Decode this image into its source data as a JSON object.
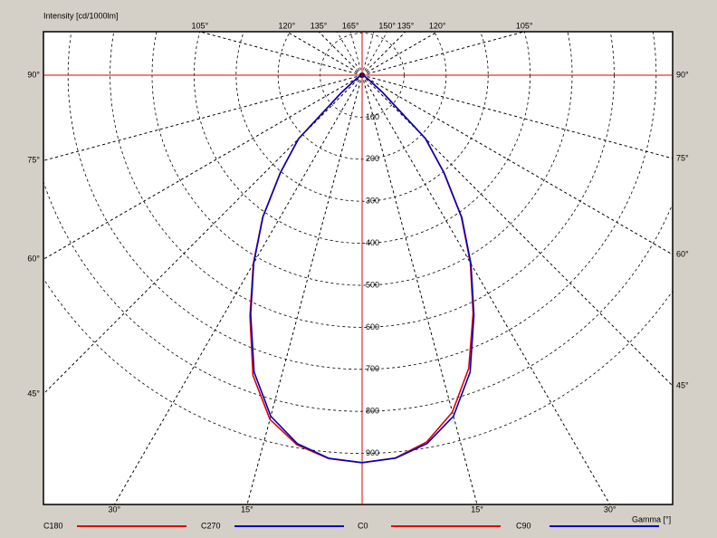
{
  "chart_data": {
    "type": "polar",
    "title": "Intensity [cd/1000lm]",
    "x_label": "Gamma [°]",
    "x": [
      0,
      5,
      10,
      15,
      20,
      25,
      30,
      35,
      40,
      45,
      50,
      55,
      60,
      70,
      80,
      90
    ],
    "series": [
      {
        "name": "C180",
        "color": "#e00000",
        "side": "left",
        "values": [
          922,
          916,
          893,
          848,
          760,
          632,
          518,
          413,
          303,
          215,
          65,
          22,
          10,
          5,
          2,
          0
        ]
      },
      {
        "name": "C270",
        "color": "#0000c0",
        "side": "left",
        "values": [
          922,
          915,
          890,
          840,
          752,
          628,
          516,
          412,
          302,
          214,
          64,
          22,
          10,
          5,
          2,
          0
        ]
      },
      {
        "name": "C0",
        "color": "#e00000",
        "side": "right",
        "values": [
          922,
          914,
          886,
          830,
          742,
          625,
          515,
          412,
          302,
          212,
          62,
          21,
          10,
          5,
          2,
          0
        ]
      },
      {
        "name": "C90",
        "color": "#0000c0",
        "side": "right",
        "values": [
          922,
          915,
          890,
          840,
          752,
          630,
          518,
          414,
          304,
          214,
          64,
          22,
          10,
          5,
          2,
          0
        ]
      }
    ],
    "ylim": [
      0,
      1000
    ],
    "yticks": [
      100,
      200,
      300,
      400,
      500,
      600,
      700,
      800,
      900
    ],
    "left_angle_ticks": [
      {
        "value": 30,
        "label": "30°"
      },
      {
        "value": 15,
        "label": "15°"
      },
      {
        "value": 45,
        "label": "45°"
      },
      {
        "value": 60,
        "label": "60°"
      },
      {
        "value": 75,
        "label": "75°"
      },
      {
        "value": 90,
        "label": "90°"
      },
      {
        "value": 105,
        "label": "105°"
      },
      {
        "value": 120,
        "label": "120°"
      },
      {
        "value": 135,
        "label": "135°"
      },
      {
        "value": 165,
        "label": "165°"
      }
    ],
    "right_angle_ticks": [
      {
        "value": 150,
        "label": "150°"
      },
      {
        "value": 135,
        "label": "135°"
      },
      {
        "value": 120,
        "label": "120°"
      },
      {
        "value": 105,
        "label": "105°"
      },
      {
        "value": 90,
        "label": "90°"
      },
      {
        "value": 75,
        "label": "75°"
      },
      {
        "value": 60,
        "label": "60°"
      },
      {
        "value": 45,
        "label": "45°"
      },
      {
        "value": 15,
        "label": "15°"
      },
      {
        "value": 30,
        "label": "30°"
      }
    ]
  }
}
